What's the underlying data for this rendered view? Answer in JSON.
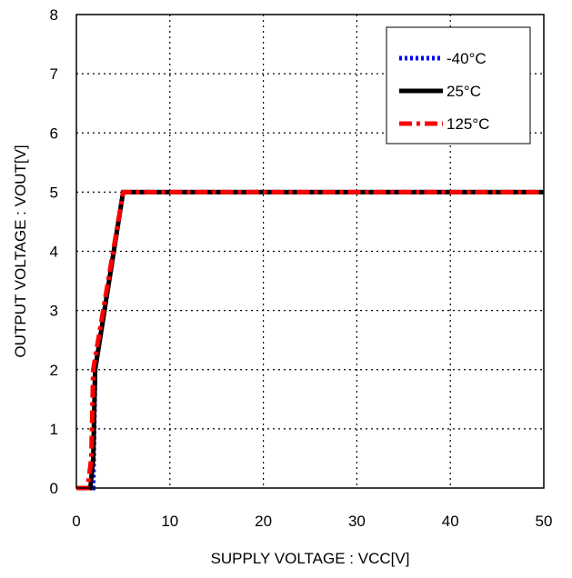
{
  "chart_data": {
    "type": "line",
    "xlabel": "SUPPLY VOLTAGE : VCC[V]",
    "ylabel": "OUTPUT VOLTAGE : VOUT[V]",
    "xlim": [
      0,
      50
    ],
    "ylim": [
      0,
      8
    ],
    "x_ticks": [
      "0",
      "10",
      "20",
      "30",
      "40",
      "50"
    ],
    "y_ticks": [
      "0",
      "1",
      "2",
      "3",
      "4",
      "5",
      "6",
      "7",
      "8"
    ],
    "grid": true,
    "legend_position": "top-right",
    "series": [
      {
        "name": "-40°C",
        "color": "#0000ff",
        "style": "dotted",
        "x": [
          0,
          1.8,
          2.0,
          5.0,
          50
        ],
        "y": [
          0,
          0,
          2.0,
          5.0,
          5.0
        ]
      },
      {
        "name": "25°C",
        "color": "#000000",
        "style": "solid",
        "x": [
          0,
          1.5,
          1.8,
          2.0,
          5.0,
          50
        ],
        "y": [
          0,
          0,
          0.5,
          2.0,
          5.0,
          5.0
        ]
      },
      {
        "name": "125°C",
        "color": "#ff0000",
        "style": "dashdot",
        "x": [
          0,
          1.2,
          1.6,
          1.8,
          5.0,
          50
        ],
        "y": [
          0,
          0,
          0.5,
          2.0,
          5.0,
          5.0
        ]
      }
    ]
  }
}
